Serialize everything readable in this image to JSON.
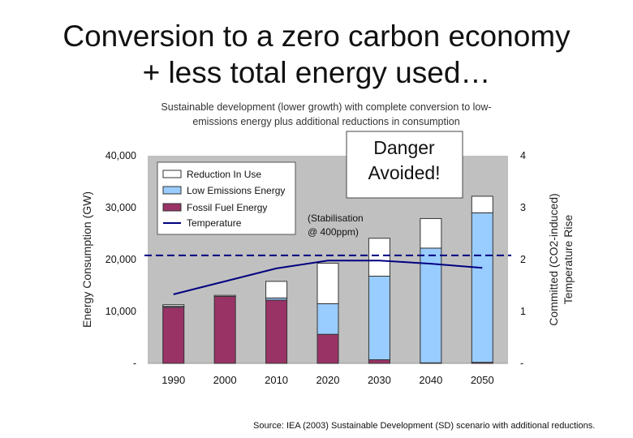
{
  "slide": {
    "title_line1": "Conversion to a zero carbon economy",
    "title_line2": "+ less total energy used…",
    "source": "Source: IEA (2003) Sustainable Development (SD) scenario with additional reductions."
  },
  "chart_data": {
    "type": "bar",
    "stacked": true,
    "title_line1": "Sustainable development (lower growth) with complete conversion to low-",
    "title_line2": "emissions energy plus additional reductions in consumption",
    "categories": [
      "1990",
      "2000",
      "2010",
      "2020",
      "2030",
      "2040",
      "2050"
    ],
    "series": [
      {
        "name": "Fossil Fuel Energy",
        "color": "#993366",
        "values": [
          10800,
          12900,
          12200,
          5600,
          700,
          100,
          200
        ]
      },
      {
        "name": "Low Emissions Energy",
        "color": "#99ccff",
        "values": [
          200,
          0,
          400,
          5900,
          16100,
          22100,
          28800
        ]
      },
      {
        "name": "Reduction In Use",
        "color": "#ffffff",
        "values": [
          300,
          200,
          3200,
          7800,
          7300,
          5700,
          3200
        ]
      }
    ],
    "line_series": {
      "name": "Temperature",
      "color": "#000080",
      "axis": "right",
      "values": [
        1.33,
        1.58,
        1.83,
        1.98,
        1.98,
        1.92,
        1.84
      ]
    },
    "threshold_line": {
      "value": 2.08,
      "axis": "right",
      "style": "dashed",
      "color": "#000080"
    },
    "left_axis": {
      "label": "Energy Consumption (GW)",
      "range": [
        0,
        40000
      ],
      "tick_values": [
        0,
        10000,
        20000,
        30000,
        40000
      ],
      "tick_labels": [
        "-",
        "10,000",
        "20,000",
        "30,000",
        "40,000"
      ]
    },
    "right_axis": {
      "label_line1": "Committed (CO2-induced)",
      "label_line2": "Temperature Rise",
      "range": [
        0,
        4
      ],
      "tick_values": [
        0,
        1,
        2,
        3,
        4
      ],
      "tick_labels": [
        "-",
        "1",
        "2",
        "3",
        "4"
      ]
    },
    "legend": {
      "position": "top-left",
      "items": [
        "Reduction In Use",
        "Low Emissions Energy",
        "Fossil Fuel Energy",
        "Temperature"
      ]
    },
    "annotations": {
      "callout_line1": "Danger",
      "callout_line2": "Avoided!",
      "note_line1": "(Stabilisation",
      "note_line2": "@ 400ppm)"
    },
    "colors": {
      "plot_background": "#c0c0c0",
      "bar_outline": "#333333",
      "line": "#000080"
    }
  }
}
